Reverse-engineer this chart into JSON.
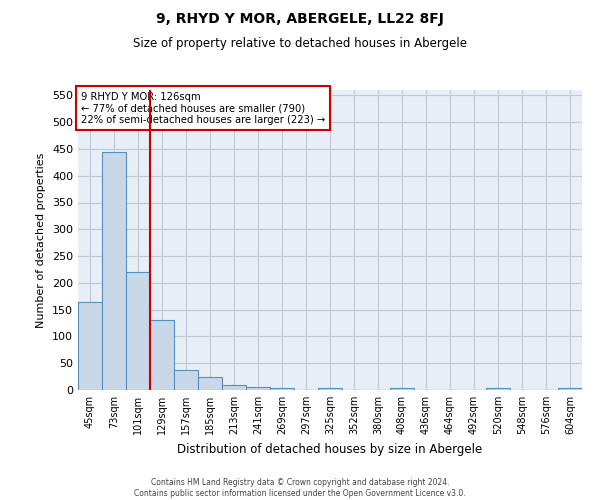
{
  "title": "9, RHYD Y MOR, ABERGELE, LL22 8FJ",
  "subtitle": "Size of property relative to detached houses in Abergele",
  "xlabel": "Distribution of detached houses by size in Abergele",
  "ylabel": "Number of detached properties",
  "categories": [
    "45sqm",
    "73sqm",
    "101sqm",
    "129sqm",
    "157sqm",
    "185sqm",
    "213sqm",
    "241sqm",
    "269sqm",
    "297sqm",
    "325sqm",
    "352sqm",
    "380sqm",
    "408sqm",
    "436sqm",
    "464sqm",
    "492sqm",
    "520sqm",
    "548sqm",
    "576sqm",
    "604sqm"
  ],
  "values": [
    165,
    445,
    220,
    130,
    37,
    25,
    10,
    5,
    3,
    0,
    3,
    0,
    0,
    3,
    0,
    0,
    0,
    3,
    0,
    0,
    3
  ],
  "bar_color": "#c8d8e8",
  "bar_edge_color": "#5590bb",
  "vline_color": "#cc0000",
  "annotation_lines": [
    "9 RHYD Y MOR: 126sqm",
    "← 77% of detached houses are smaller (790)",
    "22% of semi-detached houses are larger (223) →"
  ],
  "annotation_box_color": "#cc0000",
  "ylim": [
    0,
    560
  ],
  "yticks": [
    0,
    50,
    100,
    150,
    200,
    250,
    300,
    350,
    400,
    450,
    500,
    550
  ],
  "grid_color": "#c0c8d8",
  "background_color": "#e8eef5",
  "footer_line1": "Contains HM Land Registry data © Crown copyright and database right 2024.",
  "footer_line2": "Contains public sector information licensed under the Open Government Licence v3.0."
}
